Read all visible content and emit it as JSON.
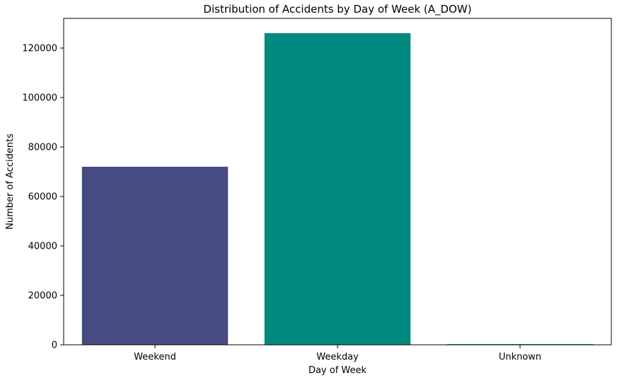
{
  "chart_data": {
    "type": "bar",
    "title": "Distribution of Accidents by Day of Week (A_DOW)",
    "xlabel": "Day of Week",
    "ylabel": "Number of Accidents",
    "categories": [
      "Weekend",
      "Weekday",
      "Unknown"
    ],
    "values": [
      72000,
      126000,
      300
    ],
    "colors": [
      "#464b81",
      "#00897e",
      "#1f9e6f"
    ],
    "ylim": [
      0,
      132000
    ],
    "yticks": [
      0,
      20000,
      40000,
      60000,
      80000,
      100000,
      120000
    ],
    "ytick_labels": [
      "0",
      "20000",
      "40000",
      "60000",
      "80000",
      "100000",
      "120000"
    ],
    "grid": false,
    "legend": false
  }
}
